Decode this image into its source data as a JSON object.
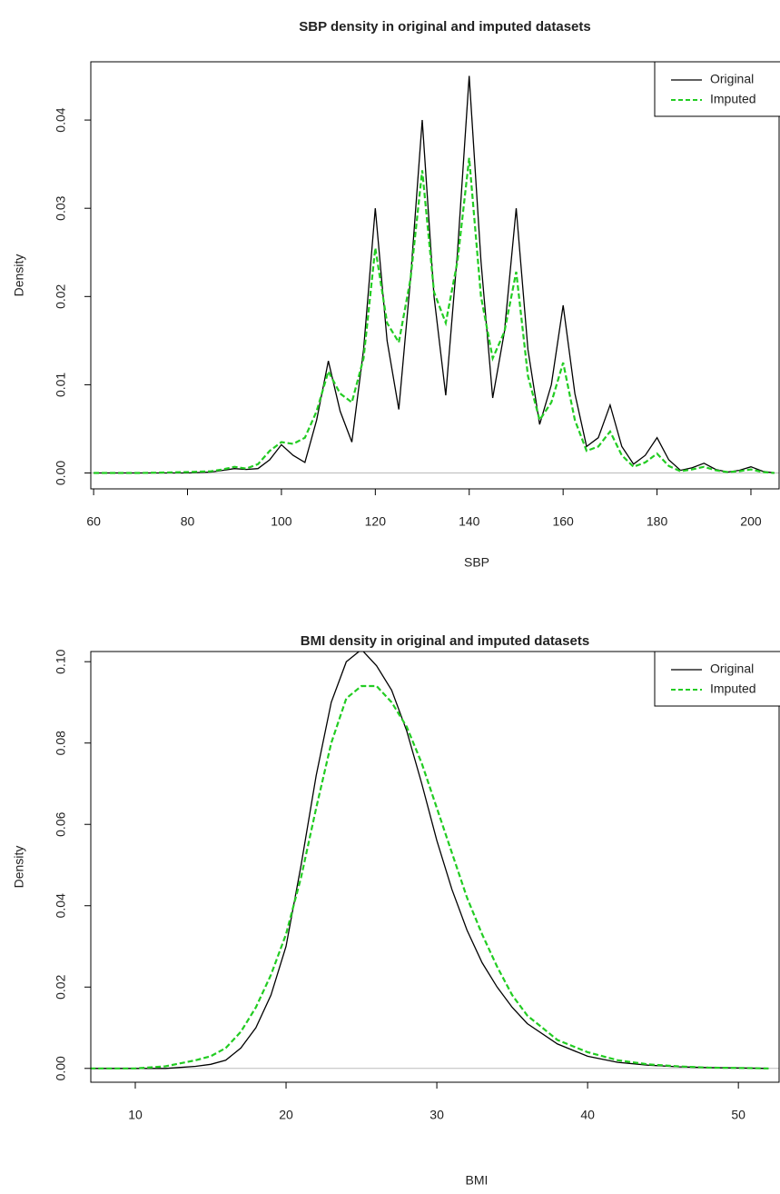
{
  "chart_data": [
    {
      "type": "line",
      "title": "SBP density in original and imputed datasets",
      "xlabel": "SBP",
      "ylabel": "Density",
      "x": [
        60,
        70,
        80,
        85,
        87.5,
        90,
        92.5,
        95,
        97.5,
        100,
        102.5,
        105,
        107.5,
        110,
        112.5,
        115,
        117.5,
        120,
        122.5,
        125,
        127.5,
        130,
        132.5,
        135,
        137.5,
        140,
        142.5,
        145,
        147.5,
        150,
        152.5,
        155,
        157.5,
        160,
        162.5,
        165,
        167.5,
        170,
        172.5,
        175,
        177.5,
        180,
        182.5,
        185,
        187.5,
        190,
        192.5,
        195,
        197.5,
        200,
        202.5,
        205
      ],
      "series": [
        {
          "name": "Original",
          "color": "#000000",
          "linestyle": "solid",
          "values": [
            0,
            0,
            0,
            0.0001,
            0.0003,
            0.0005,
            0.0004,
            0.0005,
            0.0015,
            0.0032,
            0.002,
            0.0012,
            0.006,
            0.0127,
            0.007,
            0.0035,
            0.014,
            0.03,
            0.015,
            0.0072,
            0.022,
            0.04,
            0.02,
            0.0088,
            0.025,
            0.045,
            0.024,
            0.0085,
            0.016,
            0.03,
            0.014,
            0.0055,
            0.01,
            0.019,
            0.009,
            0.003,
            0.004,
            0.0077,
            0.003,
            0.001,
            0.002,
            0.004,
            0.0015,
            0.0003,
            0.0006,
            0.0011,
            0.0004,
            0.0001,
            0.0003,
            0.0007,
            0.0002,
            0
          ]
        },
        {
          "name": "Imputed",
          "color": "#22cc22",
          "linestyle": "dashed",
          "values": [
            0,
            0,
            0.0001,
            0.0002,
            0.0004,
            0.0007,
            0.0005,
            0.001,
            0.0025,
            0.0035,
            0.0033,
            0.004,
            0.007,
            0.0115,
            0.009,
            0.008,
            0.013,
            0.0255,
            0.017,
            0.0148,
            0.022,
            0.0343,
            0.0205,
            0.017,
            0.024,
            0.0357,
            0.02,
            0.013,
            0.016,
            0.0228,
            0.011,
            0.006,
            0.008,
            0.0125,
            0.006,
            0.0025,
            0.003,
            0.0047,
            0.002,
            0.0007,
            0.0012,
            0.0022,
            0.0008,
            0.0002,
            0.0004,
            0.0007,
            0.0003,
            0.0001,
            0.0002,
            0.0004,
            0.0001,
            0
          ]
        }
      ],
      "xlim": [
        59.4,
        206
      ],
      "ylim": [
        -0.0018,
        0.0466
      ],
      "xticks": [
        60,
        80,
        100,
        120,
        140,
        160,
        180,
        200
      ],
      "yticks": [
        {
          "value": 0,
          "label": "0.00"
        },
        0.01,
        0.02,
        0.03,
        0.04
      ],
      "legend": "topright"
    },
    {
      "type": "line",
      "title": "BMI density in original and imputed datasets",
      "xlabel": "BMI",
      "ylabel": "Density",
      "x": [
        7,
        10,
        12,
        14,
        15,
        16,
        17,
        18,
        19,
        20,
        21,
        22,
        23,
        24,
        25,
        26,
        27,
        28,
        29,
        30,
        31,
        32,
        33,
        34,
        35,
        36,
        38,
        40,
        42,
        44,
        46,
        48,
        50,
        52
      ],
      "series": [
        {
          "name": "Original",
          "color": "#000000",
          "linestyle": "solid",
          "values": [
            0,
            0,
            0,
            0.0005,
            0.001,
            0.002,
            0.005,
            0.01,
            0.018,
            0.03,
            0.05,
            0.072,
            0.09,
            0.1,
            0.103,
            0.099,
            0.093,
            0.083,
            0.07,
            0.056,
            0.044,
            0.034,
            0.026,
            0.02,
            0.015,
            0.011,
            0.006,
            0.003,
            0.0015,
            0.0008,
            0.0004,
            0.0002,
            0.0001,
            0
          ]
        },
        {
          "name": "Imputed",
          "color": "#22cc22",
          "linestyle": "dashed",
          "values": [
            0,
            0,
            0.0005,
            0.002,
            0.003,
            0.005,
            0.009,
            0.015,
            0.023,
            0.033,
            0.047,
            0.064,
            0.08,
            0.091,
            0.094,
            0.094,
            0.09,
            0.084,
            0.075,
            0.064,
            0.053,
            0.042,
            0.033,
            0.025,
            0.018,
            0.013,
            0.007,
            0.004,
            0.002,
            0.001,
            0.0005,
            0.0002,
            0.0001,
            0
          ]
        }
      ],
      "xlim": [
        7.05,
        52.7
      ],
      "ylim": [
        -0.0034,
        0.1025
      ],
      "xticks": [
        10,
        20,
        30,
        40,
        50
      ],
      "yticks": [
        {
          "value": 0,
          "label": "0.00"
        },
        0.02,
        0.04,
        0.06,
        0.08,
        {
          "value": 0.1,
          "label": "0.10"
        }
      ],
      "legend": "topright"
    }
  ]
}
